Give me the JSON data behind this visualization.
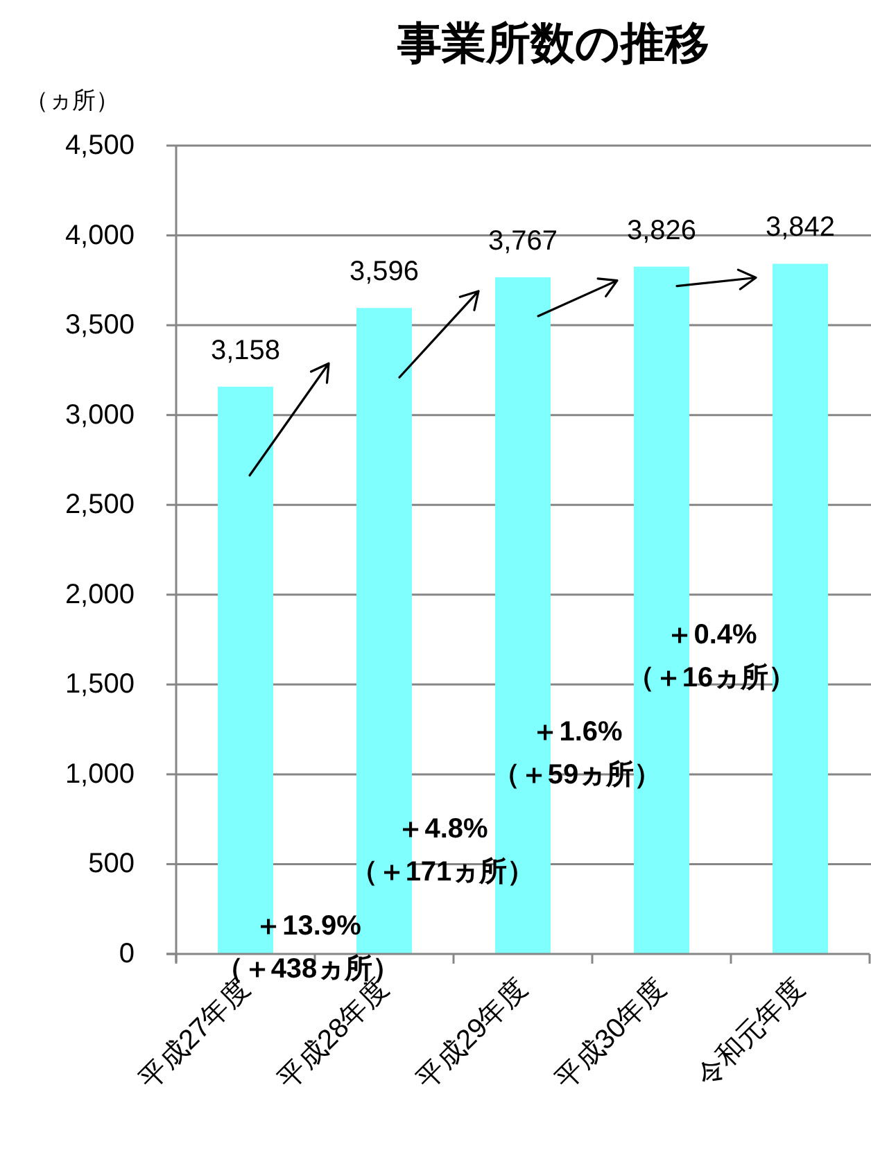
{
  "chart_data": {
    "type": "bar",
    "title": "事業所数の推移",
    "ylabel": "（ヵ所）",
    "categories": [
      "平成27年度",
      "平成28年度",
      "平成29年度",
      "平成30年度",
      "令和元年度"
    ],
    "values": [
      3158,
      3596,
      3767,
      3826,
      3842
    ],
    "value_labels": [
      "3,158",
      "3,596",
      "3,767",
      "3,826",
      "3,842"
    ],
    "color": "#80ffff",
    "ylim": [
      0,
      4500
    ],
    "yticks": [
      0,
      500,
      {
        "value": 1000,
        "label": "1,000"
      },
      {
        "value": 1500,
        "label": "1,500"
      },
      {
        "value": 2000,
        "label": "2,000"
      },
      {
        "value": 2500,
        "label": "2,500"
      },
      {
        "value": 3000,
        "label": "3,000"
      },
      {
        "value": 3500,
        "label": "3,500"
      },
      {
        "value": 4000,
        "label": "4,000"
      },
      {
        "value": 4500,
        "label": "4,500"
      }
    ],
    "grid": "y",
    "annotations": [
      "＋13.9%\n（＋438ヵ所）",
      "＋4.8%\n（＋171ヵ所）",
      "＋1.6%\n（＋59ヵ所）",
      "＋0.4%\n（＋16ヵ所）"
    ]
  }
}
